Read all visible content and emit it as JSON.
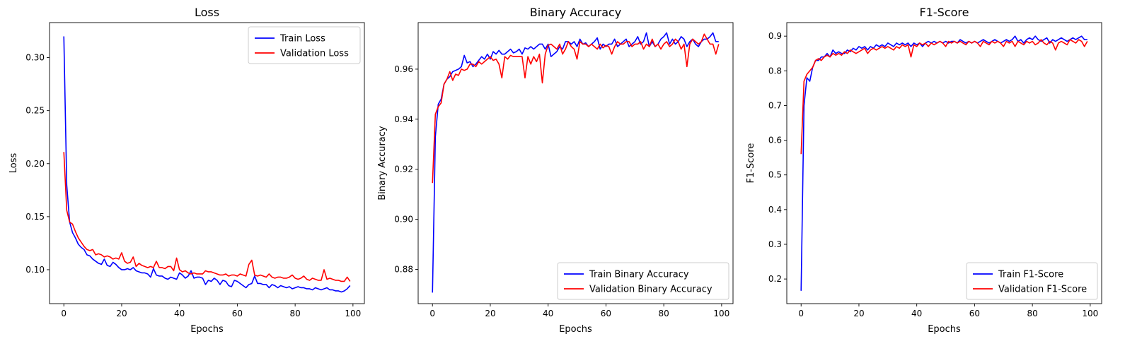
{
  "chart_data": [
    {
      "type": "line",
      "title": "Loss",
      "xlabel": "Epochs",
      "ylabel": "Loss",
      "xlim": [
        -4.95,
        103.95
      ],
      "ylim": [
        0.068,
        0.333
      ],
      "xticks": [
        0,
        20,
        40,
        60,
        80,
        100
      ],
      "yticks": [
        0.1,
        0.15,
        0.2,
        0.25,
        0.3
      ],
      "ytick_labels": [
        "0.10",
        "0.15",
        "0.20",
        "0.25",
        "0.30"
      ],
      "legend_position": "upper-right",
      "grid": false,
      "series": [
        {
          "name": "Train Loss",
          "color": "#0000ff",
          "values": [
            0.32,
            0.18,
            0.145,
            0.135,
            0.13,
            0.124,
            0.121,
            0.119,
            0.114,
            0.113,
            0.11,
            0.108,
            0.106,
            0.105,
            0.11,
            0.104,
            0.103,
            0.107,
            0.105,
            0.102,
            0.1,
            0.1,
            0.101,
            0.1,
            0.102,
            0.099,
            0.098,
            0.097,
            0.097,
            0.096,
            0.093,
            0.101,
            0.095,
            0.094,
            0.094,
            0.092,
            0.091,
            0.093,
            0.092,
            0.091,
            0.097,
            0.095,
            0.092,
            0.094,
            0.099,
            0.092,
            0.093,
            0.093,
            0.092,
            0.086,
            0.09,
            0.089,
            0.092,
            0.09,
            0.086,
            0.09,
            0.089,
            0.085,
            0.084,
            0.09,
            0.089,
            0.087,
            0.085,
            0.083,
            0.086,
            0.087,
            0.094,
            0.087,
            0.087,
            0.086,
            0.086,
            0.083,
            0.086,
            0.085,
            0.083,
            0.085,
            0.084,
            0.083,
            0.084,
            0.082,
            0.083,
            0.084,
            0.083,
            0.083,
            0.082,
            0.082,
            0.081,
            0.083,
            0.082,
            0.081,
            0.082,
            0.083,
            0.081,
            0.081,
            0.08,
            0.08,
            0.079,
            0.08,
            0.082,
            0.085
          ]
        },
        {
          "name": "Validation Loss",
          "color": "#ff0000",
          "values": [
            0.211,
            0.156,
            0.145,
            0.143,
            0.136,
            0.13,
            0.126,
            0.122,
            0.119,
            0.118,
            0.119,
            0.114,
            0.115,
            0.114,
            0.112,
            0.113,
            0.112,
            0.11,
            0.111,
            0.11,
            0.116,
            0.108,
            0.106,
            0.107,
            0.112,
            0.103,
            0.106,
            0.104,
            0.103,
            0.102,
            0.103,
            0.102,
            0.108,
            0.102,
            0.102,
            0.101,
            0.103,
            0.103,
            0.099,
            0.111,
            0.1,
            0.098,
            0.099,
            0.097,
            0.096,
            0.097,
            0.096,
            0.096,
            0.096,
            0.099,
            0.098,
            0.098,
            0.097,
            0.096,
            0.095,
            0.095,
            0.096,
            0.094,
            0.095,
            0.095,
            0.094,
            0.096,
            0.095,
            0.094,
            0.105,
            0.109,
            0.095,
            0.094,
            0.095,
            0.094,
            0.093,
            0.096,
            0.093,
            0.092,
            0.093,
            0.093,
            0.092,
            0.092,
            0.093,
            0.095,
            0.092,
            0.091,
            0.092,
            0.094,
            0.091,
            0.09,
            0.092,
            0.091,
            0.09,
            0.09,
            0.1,
            0.091,
            0.092,
            0.091,
            0.09,
            0.09,
            0.089,
            0.089,
            0.093,
            0.089
          ]
        }
      ]
    },
    {
      "type": "line",
      "title": "Binary Accuracy",
      "xlabel": "Epochs",
      "ylabel": "Binary Accuracy",
      "xlim": [
        -4.95,
        103.95
      ],
      "ylim": [
        0.8663,
        0.9786
      ],
      "xticks": [
        0,
        20,
        40,
        60,
        80,
        100
      ],
      "yticks": [
        0.88,
        0.9,
        0.92,
        0.94,
        0.96
      ],
      "ytick_labels": [
        "0.88",
        "0.90",
        "0.92",
        "0.94",
        "0.96"
      ],
      "legend_position": "lower-right",
      "grid": false,
      "series": [
        {
          "name": "Train Binary Accuracy",
          "color": "#0000ff",
          "values": [
            0.8707,
            0.933,
            0.946,
            0.948,
            0.954,
            0.956,
            0.957,
            0.959,
            0.9595,
            0.96,
            0.961,
            0.9655,
            0.9625,
            0.963,
            0.961,
            0.962,
            0.9635,
            0.965,
            0.964,
            0.966,
            0.964,
            0.967,
            0.966,
            0.9675,
            0.966,
            0.966,
            0.967,
            0.968,
            0.9665,
            0.967,
            0.968,
            0.966,
            0.9685,
            0.968,
            0.969,
            0.968,
            0.969,
            0.97,
            0.97,
            0.968,
            0.97,
            0.965,
            0.966,
            0.967,
            0.969,
            0.968,
            0.971,
            0.971,
            0.97,
            0.971,
            0.969,
            0.972,
            0.97,
            0.9705,
            0.969,
            0.97,
            0.971,
            0.9725,
            0.968,
            0.97,
            0.969,
            0.97,
            0.97,
            0.972,
            0.969,
            0.97,
            0.971,
            0.972,
            0.969,
            0.97,
            0.971,
            0.973,
            0.97,
            0.971,
            0.9745,
            0.969,
            0.971,
            0.969,
            0.97,
            0.972,
            0.973,
            0.9745,
            0.97,
            0.972,
            0.97,
            0.971,
            0.973,
            0.972,
            0.969,
            0.971,
            0.972,
            0.97,
            0.969,
            0.971,
            0.972,
            0.972,
            0.973,
            0.9745,
            0.971,
            0.971
          ]
        },
        {
          "name": "Validation Binary Accuracy",
          "color": "#ff0000",
          "values": [
            0.9145,
            0.942,
            0.945,
            0.9465,
            0.954,
            0.956,
            0.959,
            0.9555,
            0.958,
            0.9575,
            0.96,
            0.9595,
            0.96,
            0.962,
            0.962,
            0.961,
            0.963,
            0.962,
            0.963,
            0.964,
            0.965,
            0.9635,
            0.964,
            0.962,
            0.9565,
            0.965,
            0.964,
            0.9655,
            0.965,
            0.965,
            0.965,
            0.965,
            0.9565,
            0.965,
            0.962,
            0.965,
            0.963,
            0.966,
            0.9545,
            0.966,
            0.9695,
            0.97,
            0.969,
            0.968,
            0.97,
            0.966,
            0.968,
            0.971,
            0.969,
            0.968,
            0.964,
            0.971,
            0.97,
            0.97,
            0.969,
            0.97,
            0.969,
            0.968,
            0.97,
            0.9685,
            0.9695,
            0.969,
            0.966,
            0.969,
            0.971,
            0.97,
            0.97,
            0.971,
            0.971,
            0.969,
            0.97,
            0.97,
            0.971,
            0.968,
            0.97,
            0.969,
            0.972,
            0.969,
            0.97,
            0.968,
            0.97,
            0.971,
            0.969,
            0.97,
            0.972,
            0.971,
            0.968,
            0.97,
            0.961,
            0.97,
            0.972,
            0.971,
            0.97,
            0.971,
            0.974,
            0.972,
            0.97,
            0.97,
            0.966,
            0.97
          ]
        }
      ]
    },
    {
      "type": "line",
      "title": "F1-Score",
      "xlabel": "Epochs",
      "ylabel": "F1-Score",
      "xlim": [
        -4.95,
        103.95
      ],
      "ylim": [
        0.129,
        0.939
      ],
      "xticks": [
        0,
        20,
        40,
        60,
        80,
        100
      ],
      "yticks": [
        0.2,
        0.3,
        0.4,
        0.5,
        0.6,
        0.7,
        0.8,
        0.9
      ],
      "ytick_labels": [
        "0.2",
        "0.3",
        "0.4",
        "0.5",
        "0.6",
        "0.7",
        "0.8",
        "0.9"
      ],
      "legend_position": "lower-right",
      "grid": false,
      "series": [
        {
          "name": "Train F1-Score",
          "color": "#0000ff",
          "values": [
            0.166,
            0.7,
            0.78,
            0.77,
            0.81,
            0.83,
            0.83,
            0.84,
            0.84,
            0.85,
            0.84,
            0.86,
            0.85,
            0.855,
            0.85,
            0.85,
            0.86,
            0.855,
            0.865,
            0.86,
            0.87,
            0.865,
            0.87,
            0.86,
            0.87,
            0.865,
            0.875,
            0.87,
            0.875,
            0.87,
            0.88,
            0.875,
            0.87,
            0.88,
            0.875,
            0.88,
            0.875,
            0.88,
            0.87,
            0.88,
            0.875,
            0.88,
            0.87,
            0.88,
            0.885,
            0.88,
            0.885,
            0.88,
            0.885,
            0.88,
            0.885,
            0.88,
            0.885,
            0.885,
            0.88,
            0.89,
            0.885,
            0.88,
            0.885,
            0.88,
            0.885,
            0.88,
            0.885,
            0.89,
            0.885,
            0.88,
            0.885,
            0.89,
            0.885,
            0.88,
            0.885,
            0.89,
            0.885,
            0.89,
            0.9,
            0.885,
            0.89,
            0.88,
            0.89,
            0.895,
            0.89,
            0.9,
            0.89,
            0.885,
            0.89,
            0.895,
            0.88,
            0.89,
            0.885,
            0.89,
            0.895,
            0.89,
            0.885,
            0.89,
            0.895,
            0.89,
            0.895,
            0.9,
            0.89,
            0.89
          ]
        },
        {
          "name": "Validation F1-Score",
          "color": "#ff0000",
          "values": [
            0.56,
            0.77,
            0.79,
            0.8,
            0.81,
            0.83,
            0.835,
            0.83,
            0.84,
            0.845,
            0.84,
            0.85,
            0.845,
            0.85,
            0.845,
            0.855,
            0.85,
            0.86,
            0.855,
            0.85,
            0.855,
            0.86,
            0.865,
            0.85,
            0.86,
            0.865,
            0.86,
            0.865,
            0.87,
            0.865,
            0.87,
            0.865,
            0.86,
            0.87,
            0.865,
            0.875,
            0.87,
            0.875,
            0.84,
            0.875,
            0.87,
            0.88,
            0.875,
            0.88,
            0.87,
            0.88,
            0.875,
            0.88,
            0.885,
            0.88,
            0.87,
            0.885,
            0.88,
            0.885,
            0.88,
            0.885,
            0.88,
            0.875,
            0.885,
            0.88,
            0.885,
            0.88,
            0.87,
            0.885,
            0.88,
            0.875,
            0.885,
            0.88,
            0.885,
            0.88,
            0.87,
            0.885,
            0.88,
            0.885,
            0.87,
            0.885,
            0.88,
            0.875,
            0.885,
            0.88,
            0.885,
            0.875,
            0.88,
            0.89,
            0.88,
            0.875,
            0.885,
            0.88,
            0.86,
            0.88,
            0.885,
            0.88,
            0.875,
            0.89,
            0.885,
            0.88,
            0.89,
            0.885,
            0.87,
            0.885
          ]
        }
      ]
    }
  ]
}
